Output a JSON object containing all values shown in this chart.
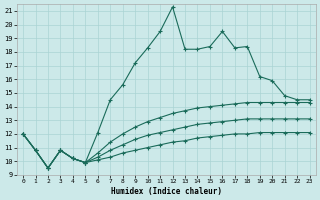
{
  "xlabel": "Humidex (Indice chaleur)",
  "background_color": "#cce9e9",
  "grid_color": "#aad4d4",
  "line_color": "#1a6b5a",
  "xlim": [
    -0.5,
    23.5
  ],
  "ylim": [
    9,
    21.5
  ],
  "xticks": [
    0,
    1,
    2,
    3,
    4,
    5,
    6,
    7,
    8,
    9,
    10,
    11,
    12,
    13,
    14,
    15,
    16,
    17,
    18,
    19,
    20,
    21,
    22,
    23
  ],
  "yticks": [
    9,
    10,
    11,
    12,
    13,
    14,
    15,
    16,
    17,
    18,
    19,
    20,
    21
  ],
  "line1_x": [
    0,
    1,
    2,
    3,
    4,
    5,
    6,
    7,
    8,
    9,
    10,
    11,
    12,
    13,
    14,
    15,
    16,
    17,
    18,
    19,
    20,
    21,
    22,
    23
  ],
  "line1_y": [
    12.0,
    10.8,
    9.5,
    10.8,
    10.2,
    9.9,
    12.1,
    14.5,
    15.6,
    17.2,
    18.3,
    19.5,
    21.3,
    18.2,
    18.2,
    18.4,
    19.5,
    18.3,
    18.4,
    16.2,
    15.9,
    14.8,
    14.5,
    14.5
  ],
  "line2_x": [
    0,
    1,
    2,
    3,
    4,
    5,
    6,
    7,
    8,
    9,
    10,
    11,
    12,
    13,
    14,
    15,
    16,
    17,
    18,
    19,
    20,
    21,
    22,
    23
  ],
  "line2_y": [
    12.0,
    10.8,
    9.5,
    10.8,
    10.2,
    9.9,
    10.6,
    11.4,
    12.0,
    12.5,
    12.9,
    13.2,
    13.5,
    13.7,
    13.9,
    14.0,
    14.1,
    14.2,
    14.3,
    14.3,
    14.3,
    14.3,
    14.3,
    14.3
  ],
  "line3_x": [
    0,
    1,
    2,
    3,
    4,
    5,
    6,
    7,
    8,
    9,
    10,
    11,
    12,
    13,
    14,
    15,
    16,
    17,
    18,
    19,
    20,
    21,
    22,
    23
  ],
  "line3_y": [
    12.0,
    10.8,
    9.5,
    10.8,
    10.2,
    9.9,
    10.3,
    10.8,
    11.2,
    11.6,
    11.9,
    12.1,
    12.3,
    12.5,
    12.7,
    12.8,
    12.9,
    13.0,
    13.1,
    13.1,
    13.1,
    13.1,
    13.1,
    13.1
  ],
  "line4_x": [
    0,
    1,
    2,
    3,
    4,
    5,
    6,
    7,
    8,
    9,
    10,
    11,
    12,
    13,
    14,
    15,
    16,
    17,
    18,
    19,
    20,
    21,
    22,
    23
  ],
  "line4_y": [
    12.0,
    10.8,
    9.5,
    10.8,
    10.2,
    9.9,
    10.1,
    10.3,
    10.6,
    10.8,
    11.0,
    11.2,
    11.4,
    11.5,
    11.7,
    11.8,
    11.9,
    12.0,
    12.0,
    12.1,
    12.1,
    12.1,
    12.1,
    12.1
  ]
}
